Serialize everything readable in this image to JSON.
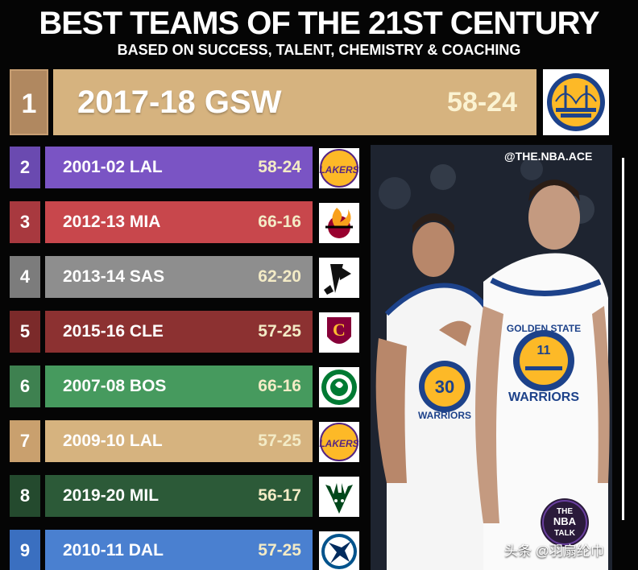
{
  "header": {
    "title": "BEST TEAMS OF THE 21ST CENTURY",
    "subtitle": "BASED ON SUCCESS, TALENT, CHEMISTRY & COACHING"
  },
  "top_team": {
    "rank": "1",
    "team": "2017-18 GSW",
    "record": "58-24",
    "logo": "warriors-logo"
  },
  "teams": [
    {
      "rank": "2",
      "team": "2001-02 LAL",
      "record": "58-24",
      "rank_color": "#6a4ab0",
      "bar_color": "#7a54c4",
      "logo": "lakers-logo"
    },
    {
      "rank": "3",
      "team": "2012-13 MIA",
      "record": "66-16",
      "rank_color": "#a8393f",
      "bar_color": "#c8474c",
      "logo": "heat-logo"
    },
    {
      "rank": "4",
      "team": "2013-14 SAS",
      "record": "62-20",
      "rank_color": "#7c7c7c",
      "bar_color": "#8e8e8e",
      "logo": "spurs-logo"
    },
    {
      "rank": "5",
      "team": "2015-16 CLE",
      "record": "57-25",
      "rank_color": "#7b2a2a",
      "bar_color": "#8c3131",
      "logo": "cavaliers-logo"
    },
    {
      "rank": "6",
      "team": "2007-08 BOS",
      "record": "66-16",
      "rank_color": "#3e8150",
      "bar_color": "#469a5e",
      "logo": "celtics-logo"
    },
    {
      "rank": "7",
      "team": "2009-10 LAL",
      "record": "57-25",
      "rank_color": "#c9a06e",
      "bar_color": "#d6b37f",
      "logo": "lakers-logo"
    },
    {
      "rank": "8",
      "team": "2019-20 MIL",
      "record": "56-17",
      "rank_color": "#244a2e",
      "bar_color": "#2c5a38",
      "logo": "bucks-logo"
    },
    {
      "rank": "9",
      "team": "2010-11 DAL",
      "record": "57-25",
      "rank_color": "#3a6fc0",
      "bar_color": "#4a80d0",
      "logo": "mavericks-logo"
    }
  ],
  "photo": {
    "handle": "@THE.NBA.ACE",
    "jersey_team": "GOLDEN STATE",
    "jersey_name": "WARRIORS",
    "left_number": "30",
    "right_number": "11"
  },
  "badge": {
    "line1": "THE",
    "line2": "NBA",
    "line3": "TALK"
  },
  "watermark": "头条 @羽扇纶巾",
  "logo_text": {
    "lakers": "LAKERS"
  }
}
